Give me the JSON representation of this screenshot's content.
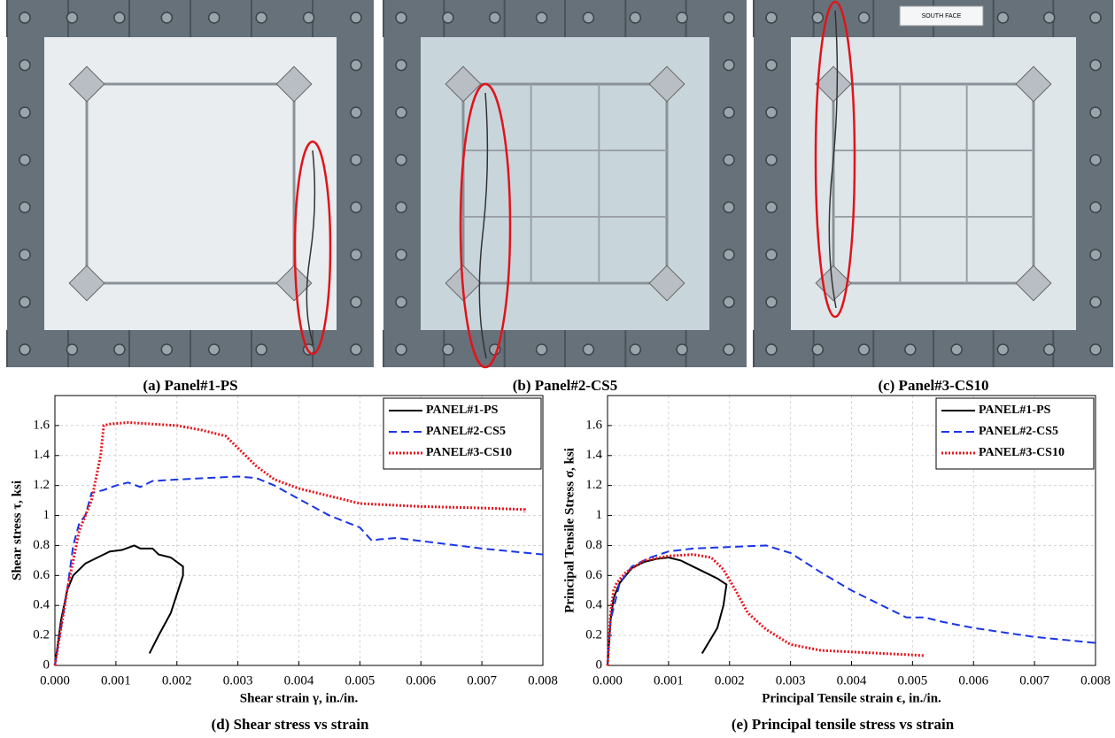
{
  "photos": [
    {
      "caption": "(a) Panel#1-PS"
    },
    {
      "caption": "(b) Panel#2-CS5"
    },
    {
      "caption": "(c) Panel#3-CS10",
      "sign": "SOUTH FACE"
    }
  ],
  "chart_data": [
    {
      "type": "line",
      "caption": "(d) Shear stress vs strain",
      "x_label": "Shear strain γ, in./in.",
      "y_label": "Shear stress τ, ksi",
      "xlim": [
        0,
        0.008
      ],
      "ylim": [
        0,
        1.8
      ],
      "xticks": [
        {
          "value": 0,
          "label": "0.000"
        },
        0.001,
        0.002,
        0.003,
        0.004,
        0.005,
        0.006,
        0.007,
        0.008
      ],
      "yticks": [
        0,
        0.2,
        0.4,
        0.6,
        0.8,
        1,
        1.2,
        1.4,
        1.6
      ],
      "grid": true,
      "legend": "upper right",
      "series": [
        {
          "name": "PANEL#1-PS",
          "color": "#000000",
          "dash": "solid",
          "x": [
            0,
            0.0001,
            0.0002,
            0.0003,
            0.0005,
            0.0007,
            0.0009,
            0.0011,
            0.0013,
            0.0014,
            0.0016,
            0.0017,
            0.0019,
            0.0021,
            0.0021,
            0.0019,
            0.0017,
            0.00155
          ],
          "values": [
            0,
            0.3,
            0.5,
            0.6,
            0.68,
            0.72,
            0.76,
            0.77,
            0.8,
            0.78,
            0.78,
            0.74,
            0.72,
            0.66,
            0.6,
            0.35,
            0.2,
            0.08
          ]
        },
        {
          "name": "PANEL#2-CS5",
          "color": "#1a35e6",
          "dash": "dashed",
          "x": [
            0,
            0.0002,
            0.0003,
            0.0004,
            0.0005,
            0.0006,
            0.0008,
            0.001,
            0.0012,
            0.0014,
            0.0016,
            0.002,
            0.0025,
            0.003,
            0.0033,
            0.0036,
            0.004,
            0.0045,
            0.005,
            0.0052,
            0.0053,
            0.0056,
            0.006,
            0.007,
            0.008
          ],
          "values": [
            0,
            0.5,
            0.8,
            0.95,
            1.0,
            1.15,
            1.17,
            1.2,
            1.22,
            1.19,
            1.23,
            1.24,
            1.25,
            1.26,
            1.25,
            1.2,
            1.11,
            1.0,
            0.92,
            0.83,
            0.84,
            0.85,
            0.83,
            0.78,
            0.74
          ]
        },
        {
          "name": "PANEL#3-CS10",
          "color": "#e8141b",
          "dash": "dotted",
          "x": [
            0,
            0.0002,
            0.0004,
            0.0006,
            0.0007,
            0.00075,
            0.0008,
            0.0009,
            0.0012,
            0.0016,
            0.002,
            0.0024,
            0.0028,
            0.003,
            0.0033,
            0.0036,
            0.004,
            0.0045,
            0.005,
            0.006,
            0.007,
            0.0077,
            0.0077
          ],
          "values": [
            0,
            0.5,
            0.9,
            1.1,
            1.3,
            1.4,
            1.6,
            1.61,
            1.62,
            1.61,
            1.6,
            1.57,
            1.53,
            1.45,
            1.33,
            1.24,
            1.18,
            1.13,
            1.08,
            1.06,
            1.05,
            1.04,
            1.02
          ]
        }
      ]
    },
    {
      "type": "line",
      "caption": "(e) Principal tensile stress vs strain",
      "x_label": "Principal Tensile strain ϵ, in./in.",
      "y_label": "Principal Tensile Stress σ, ksi",
      "xlim": [
        0,
        0.008
      ],
      "ylim": [
        0,
        1.8
      ],
      "xticks": [
        {
          "value": 0,
          "label": "0.000"
        },
        0.001,
        0.002,
        0.003,
        0.004,
        0.005,
        0.006,
        0.007,
        0.008
      ],
      "yticks": [
        0,
        0.2,
        0.4,
        0.6,
        0.8,
        1,
        1.2,
        1.4,
        1.6
      ],
      "grid": true,
      "legend": "upper right",
      "series": [
        {
          "name": "PANEL#1-PS",
          "color": "#000000",
          "dash": "solid",
          "x": [
            0,
            5e-05,
            0.0001,
            0.0002,
            0.0004,
            0.0006,
            0.0008,
            0.001,
            0.0012,
            0.0014,
            0.0016,
            0.0018,
            0.00195,
            0.0019,
            0.0018,
            0.00155
          ],
          "values": [
            0,
            0.3,
            0.45,
            0.55,
            0.65,
            0.69,
            0.71,
            0.72,
            0.7,
            0.66,
            0.62,
            0.58,
            0.54,
            0.4,
            0.25,
            0.08
          ]
        },
        {
          "name": "PANEL#2-CS5",
          "color": "#1a35e6",
          "dash": "dashed",
          "x": [
            0,
            5e-05,
            0.0002,
            0.0004,
            0.0007,
            0.001,
            0.0014,
            0.002,
            0.0026,
            0.003,
            0.0035,
            0.004,
            0.0045,
            0.0049,
            0.0052,
            0.0055,
            0.006,
            0.0065,
            0.007,
            0.0075,
            0.008
          ],
          "values": [
            0,
            0.3,
            0.55,
            0.66,
            0.72,
            0.76,
            0.78,
            0.79,
            0.8,
            0.75,
            0.62,
            0.5,
            0.4,
            0.32,
            0.32,
            0.29,
            0.25,
            0.22,
            0.19,
            0.17,
            0.15
          ]
        },
        {
          "name": "PANEL#3-CS10",
          "color": "#e8141b",
          "dash": "dotted",
          "x": [
            0,
            5e-05,
            0.0001,
            0.00015,
            0.0003,
            0.0006,
            0.001,
            0.0014,
            0.0017,
            0.0019,
            0.0021,
            0.0023,
            0.0026,
            0.003,
            0.0035,
            0.004,
            0.0045,
            0.005,
            0.0052
          ],
          "values": [
            0,
            0.35,
            0.5,
            0.55,
            0.62,
            0.7,
            0.73,
            0.74,
            0.72,
            0.64,
            0.5,
            0.35,
            0.24,
            0.14,
            0.1,
            0.09,
            0.08,
            0.07,
            0.065
          ]
        }
      ]
    }
  ]
}
